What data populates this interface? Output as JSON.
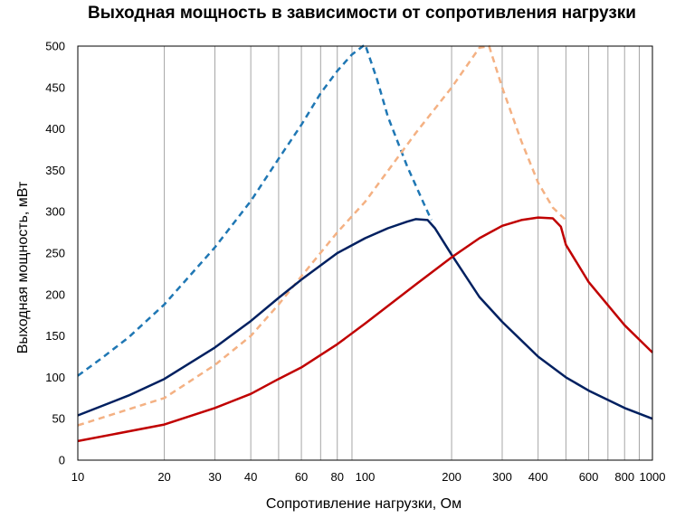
{
  "chart_data": {
    "type": "line",
    "title": "Выходная мощность в зависимости от сопротивления нагрузки",
    "xlabel": "Сопротивление нагрузки, Ом",
    "ylabel": "Выходная мощность, мВт",
    "xscale": "log",
    "xlim": [
      10,
      1000
    ],
    "ylim": [
      0,
      500
    ],
    "grid": "vertical",
    "legend": "none",
    "x_ticks": [
      10,
      20,
      30,
      40,
      60,
      80,
      100,
      200,
      300,
      400,
      600,
      800,
      1000
    ],
    "x_tick_labels": [
      "10",
      "20",
      "30",
      "40",
      "60",
      "80",
      "100",
      "200",
      "300",
      "400",
      "600",
      "800",
      "1000"
    ],
    "y_ticks": [
      0,
      50,
      100,
      150,
      200,
      250,
      300,
      350,
      400,
      450,
      500
    ],
    "y_tick_labels": [
      "0",
      "50",
      "100",
      "150",
      "200",
      "250",
      "300",
      "350",
      "400",
      "450",
      "500"
    ],
    "series": [
      {
        "color": "#1f77b4",
        "style": "dashed",
        "x": [
          10,
          12,
          15,
          20,
          30,
          40,
          50,
          60,
          70,
          80,
          90,
          100,
          110,
          120,
          140,
          160,
          170
        ],
        "y": [
          102,
          122,
          148,
          188,
          257,
          313,
          364,
          405,
          443,
          470,
          490,
          502,
          460,
          415,
          355,
          310,
          290
        ]
      },
      {
        "color": "#f4b183",
        "style": "dashed",
        "x": [
          10,
          20,
          30,
          40,
          50,
          60,
          80,
          100,
          150,
          200,
          250,
          270,
          300,
          350,
          400,
          450,
          500
        ],
        "y": [
          42,
          75,
          115,
          150,
          188,
          222,
          275,
          312,
          395,
          450,
          498,
          500,
          450,
          385,
          335,
          305,
          290
        ]
      },
      {
        "color": "#002060",
        "style": "solid",
        "x": [
          10,
          15,
          20,
          30,
          40,
          50,
          60,
          80,
          100,
          120,
          140,
          150,
          165,
          175,
          200,
          250,
          300,
          400,
          500,
          600,
          800,
          1000
        ],
        "y": [
          54,
          78,
          98,
          136,
          168,
          196,
          218,
          250,
          268,
          280,
          288,
          291,
          290,
          280,
          248,
          197,
          167,
          125,
          100,
          84,
          63,
          50
        ]
      },
      {
        "color": "#c00000",
        "style": "solid",
        "x": [
          10,
          20,
          30,
          40,
          50,
          60,
          80,
          100,
          150,
          200,
          250,
          300,
          350,
          400,
          450,
          480,
          500,
          600,
          800,
          1000
        ],
        "y": [
          23,
          43,
          63,
          80,
          98,
          112,
          140,
          165,
          212,
          245,
          268,
          283,
          290,
          293,
          292,
          282,
          260,
          215,
          163,
          130
        ]
      }
    ]
  }
}
